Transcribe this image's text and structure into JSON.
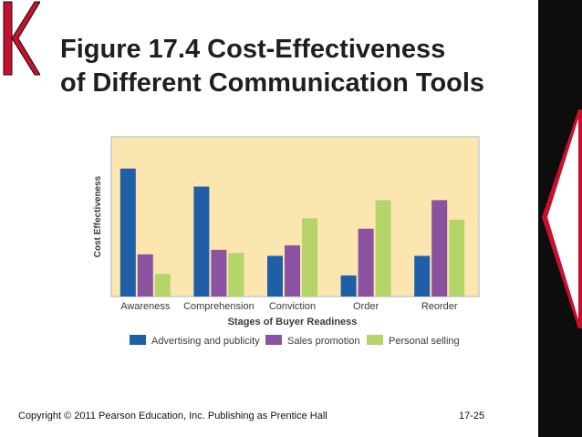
{
  "slide": {
    "title_line1": "Figure 17.4 Cost-Effectiveness",
    "title_line2": "of Different Communication Tools",
    "footer": "Copyright © 2011 Pearson Education, Inc.  Publishing as Prentice Hall",
    "page_number": "17-25"
  },
  "colors": {
    "logo_red": "#c8102e",
    "plot_bg": "#fbe6b0",
    "frame": "#c9c9c9"
  },
  "chart_data": {
    "type": "bar",
    "title": "",
    "xlabel": "Stages of Buyer Readiness",
    "ylabel": "Cost Effectiveness",
    "ylim": [
      0,
      100
    ],
    "grid": false,
    "legend_position": "bottom",
    "categories": [
      "Awareness",
      "Comprehension",
      "Conviction",
      "Order",
      "Reorder"
    ],
    "series": [
      {
        "name": "Advertising and publicity",
        "color": "#1f5fa8",
        "values": [
          85,
          73,
          27,
          14,
          27
        ]
      },
      {
        "name": "Sales promotion",
        "color": "#8b52a1",
        "values": [
          28,
          31,
          34,
          45,
          64
        ]
      },
      {
        "name": "Personal selling",
        "color": "#b5d56a",
        "values": [
          15,
          29,
          52,
          64,
          51
        ]
      }
    ]
  }
}
